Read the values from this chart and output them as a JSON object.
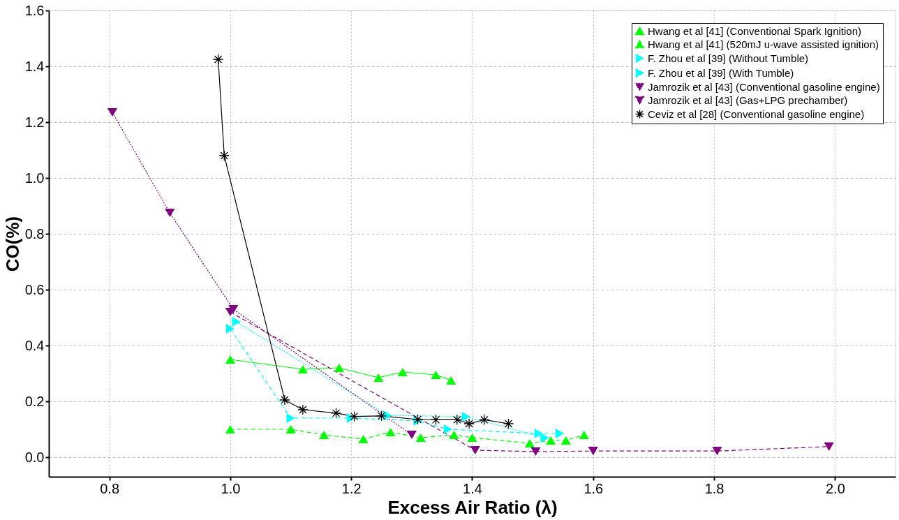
{
  "chart_data": {
    "type": "line",
    "xlabel": "Excess Air Ratio (λ)",
    "ylabel": "CO(%)",
    "xlim": [
      0.7,
      2.1
    ],
    "xticks": [
      0.8,
      {
        "value": 1,
        "label": "1.0"
      },
      1.2,
      1.4,
      1.6,
      1.8,
      {
        "value": 2,
        "label": "2.0"
      }
    ],
    "ylim": [
      -0.07,
      1.6
    ],
    "yticks": [
      {
        "value": 0,
        "label": "0.0"
      },
      0.2,
      0.4,
      0.6,
      0.8,
      {
        "value": 1,
        "label": "1.0"
      },
      1.2,
      1.4,
      1.6
    ],
    "grid": true,
    "legend": "top right",
    "series": [
      {
        "name": "Hwang et al [41] (Conventional Spark Ignition)",
        "color": "#00ff00",
        "marker": "triangle",
        "line_style": "solid",
        "x": [
          1.0,
          1.12,
          1.18,
          1.245,
          1.285,
          1.34,
          1.365
        ],
        "values": [
          0.35,
          0.315,
          0.32,
          0.285,
          0.305,
          0.295,
          0.275
        ]
      },
      {
        "name": "Hwang et al [41] (520mJ u-wave assisted ignition)",
        "color": "#00ff00",
        "marker": "triangle",
        "line_style": "dashed",
        "x": [
          1.0,
          1.1,
          1.155,
          1.22,
          1.265,
          1.315,
          1.37,
          1.4,
          1.495,
          1.53,
          1.555,
          1.585
        ],
        "values": [
          0.1,
          0.1,
          0.08,
          0.065,
          0.09,
          0.07,
          0.08,
          0.07,
          0.05,
          0.06,
          0.06,
          0.08
        ]
      },
      {
        "name": "F. Zhou et al [39] (Without Tumble)",
        "color": "#00ffff",
        "marker": "triangle-right",
        "line_style": "dotted",
        "x": [
          1.01,
          1.12,
          1.26,
          1.39,
          1.52
        ],
        "values": [
          0.485,
          null,
          0.15,
          0.145,
          0.07
        ]
      },
      {
        "name": "F. Zhou et al [39] (With Tumble)",
        "color": "#00ffff",
        "marker": "triangle-right",
        "line_style": "dashed",
        "x": [
          1.0,
          1.1,
          1.2,
          1.31,
          1.36,
          1.51,
          1.545
        ],
        "values": [
          0.46,
          0.14,
          0.14,
          0.13,
          0.1,
          0.085,
          0.085
        ]
      },
      {
        "name": "Jamrozik et al [43] (Conventional gasoline engine)",
        "color": "#800080",
        "marker": "triangle-down",
        "line_style": "dotted",
        "x": [
          0.805,
          0.9,
          1.005,
          1.3
        ],
        "values": [
          1.235,
          0.875,
          0.53,
          0.08
        ]
      },
      {
        "name": "Jamrozik et al [43] (Gas+LPG prechamber)",
        "color": "#800080",
        "marker": "triangle-down",
        "line_style": "dashed",
        "x": [
          1.0,
          1.405,
          1.505,
          1.6,
          1.805,
          1.99
        ],
        "values": [
          0.52,
          0.025,
          0.02,
          0.022,
          0.022,
          0.038
        ]
      },
      {
        "name": "Ceviz et al [28] (Conventional gasoline engine)",
        "color": "#000000",
        "marker": "cross",
        "line_style": "solid",
        "x": [
          0.98,
          0.99,
          1.09,
          1.12,
          1.175,
          1.205,
          1.25,
          1.31,
          1.34,
          1.375,
          1.395,
          1.42,
          1.46
        ],
        "values": [
          1.425,
          1.08,
          0.205,
          0.17,
          0.158,
          0.146,
          0.148,
          0.135,
          0.134,
          0.134,
          0.12,
          0.134,
          0.12
        ]
      }
    ]
  }
}
